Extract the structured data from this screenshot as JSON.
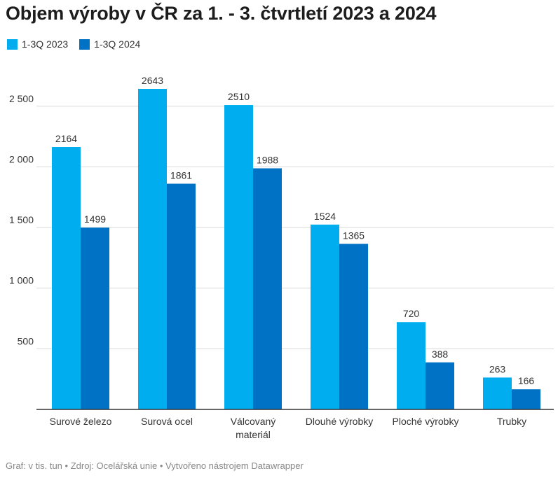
{
  "title": "Objem výroby v ČR za 1. - 3. čtvrtletí 2023 a 2024",
  "legend": [
    {
      "name": "1-3Q 2023",
      "color": "#00aeef"
    },
    {
      "name": "1-3Q 2024",
      "color": "#0072c6"
    }
  ],
  "footer": "Graf: v tis. tun • Zdroj: Ocelářská unie • Vytvořeno nástrojem Datawrapper",
  "chart_data": {
    "type": "bar",
    "categories": [
      [
        "Surové železo"
      ],
      [
        "Surová ocel"
      ],
      [
        "Válcovaný",
        "materiál"
      ],
      [
        "Dlouhé výrobky"
      ],
      [
        "Ploché výrobky"
      ],
      [
        "Trubky"
      ]
    ],
    "series": [
      {
        "name": "1-3Q 2023",
        "color": "#00aeef",
        "values": [
          2164,
          2643,
          2510,
          1524,
          720,
          263
        ]
      },
      {
        "name": "1-3Q 2024",
        "color": "#0072c6",
        "values": [
          1499,
          1861,
          1988,
          1365,
          388,
          166
        ]
      }
    ],
    "yticks": [
      500,
      1000,
      1500,
      2000,
      2500
    ],
    "ytick_labels": [
      "500",
      "1 000",
      "1 500",
      "2 000",
      "2 500"
    ],
    "ylim": [
      0,
      2643
    ],
    "grid": true,
    "legend_position": "top-left"
  }
}
